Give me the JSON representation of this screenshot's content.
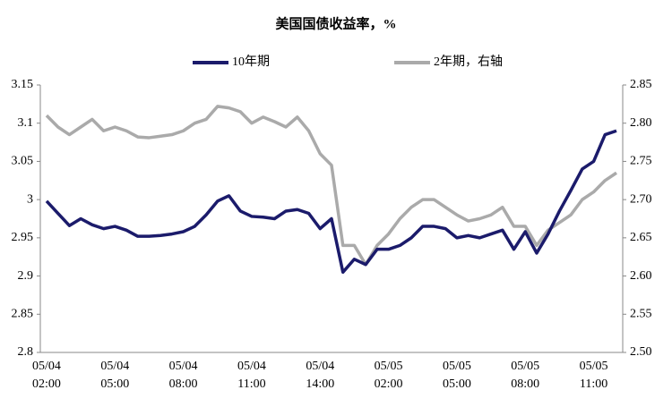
{
  "chart_data": {
    "type": "line",
    "title": "美国国债收益率，%",
    "categories": [
      "05/04\n02:00",
      null,
      null,
      null,
      null,
      null,
      "05/04\n05:00",
      null,
      null,
      null,
      null,
      null,
      "05/04\n08:00",
      null,
      null,
      null,
      null,
      null,
      "05/04\n11:00",
      null,
      null,
      null,
      null,
      null,
      "05/04\n14:00",
      null,
      null,
      null,
      null,
      null,
      "05/05\n02:00",
      null,
      null,
      null,
      null,
      null,
      "05/05\n05:00",
      null,
      null,
      null,
      null,
      null,
      "05/05\n08:00",
      null,
      null,
      null,
      null,
      null,
      "05/05\n11:00",
      null,
      null
    ],
    "series": [
      {
        "name": "10年期",
        "color": "#1b1b6b",
        "values": [
          2.998,
          2.982,
          2.966,
          2.975,
          2.967,
          2.962,
          2.965,
          2.96,
          2.952,
          2.952,
          2.953,
          2.955,
          2.958,
          2.965,
          2.98,
          2.998,
          3.005,
          2.985,
          2.978,
          2.977,
          2.975,
          2.985,
          2.987,
          2.982,
          2.962,
          2.975,
          2.905,
          2.922,
          2.915,
          2.935,
          2.935,
          2.94,
          2.95,
          2.965,
          2.965,
          2.962,
          2.95,
          2.953,
          2.95,
          2.955,
          2.96,
          2.935,
          2.958,
          2.93,
          2.955,
          2.985,
          3.012,
          3.04,
          3.05,
          3.085,
          3.09
        ]
      },
      {
        "name": "2年期，右轴",
        "color": "#aaaaaa",
        "axis": "y2",
        "values": [
          2.81,
          2.795,
          2.785,
          2.795,
          2.805,
          2.79,
          2.795,
          2.79,
          2.782,
          2.781,
          2.783,
          2.785,
          2.79,
          2.8,
          2.805,
          2.822,
          2.82,
          2.815,
          2.8,
          2.808,
          2.802,
          2.795,
          2.808,
          2.79,
          2.76,
          2.745,
          2.64,
          2.64,
          2.615,
          2.64,
          2.655,
          2.675,
          2.69,
          2.7,
          2.7,
          2.69,
          2.68,
          2.672,
          2.675,
          2.68,
          2.69,
          2.665,
          2.665,
          2.64,
          2.66,
          2.67,
          2.68,
          2.7,
          2.71,
          2.725,
          2.735
        ]
      }
    ],
    "ylim": [
      2.8,
      3.15
    ],
    "yticks": [
      2.8,
      2.85,
      2.9,
      2.95,
      3,
      3.05,
      3.1,
      3.15
    ],
    "y2lim": [
      2.5,
      2.85
    ],
    "y2ticks": [
      {
        "value": 2.5,
        "label": "2.50"
      },
      {
        "value": 2.55,
        "label": "2.55"
      },
      {
        "value": 2.6,
        "label": "2.60"
      },
      {
        "value": 2.65,
        "label": "2.65"
      },
      {
        "value": 2.7,
        "label": "2.70"
      },
      {
        "value": 2.75,
        "label": "2.75"
      },
      {
        "value": 2.8,
        "label": "2.80"
      },
      {
        "value": 2.85,
        "label": "2.85"
      }
    ],
    "legend": "top"
  }
}
